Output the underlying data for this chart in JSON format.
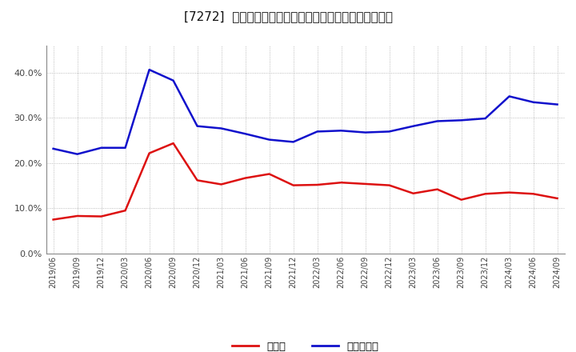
{
  "title": "[7272]  現頰金、有利子負債の総資産に対する比率の推移",
  "x_labels": [
    "2019/06",
    "2019/09",
    "2019/12",
    "2020/03",
    "2020/06",
    "2020/09",
    "2020/12",
    "2021/03",
    "2021/06",
    "2021/09",
    "2021/12",
    "2022/03",
    "2022/06",
    "2022/09",
    "2022/12",
    "2023/03",
    "2023/06",
    "2023/09",
    "2023/12",
    "2024/03",
    "2024/06",
    "2024/09"
  ],
  "cash": [
    0.075,
    0.083,
    0.082,
    0.095,
    0.222,
    0.244,
    0.162,
    0.153,
    0.167,
    0.176,
    0.151,
    0.152,
    0.157,
    0.154,
    0.151,
    0.133,
    0.142,
    0.119,
    0.132,
    0.135,
    0.132,
    0.122
  ],
  "debt": [
    0.232,
    0.22,
    0.234,
    0.234,
    0.407,
    0.383,
    0.282,
    0.277,
    0.265,
    0.252,
    0.247,
    0.27,
    0.272,
    0.268,
    0.27,
    0.282,
    0.293,
    0.295,
    0.299,
    0.348,
    0.335,
    0.33
  ],
  "cash_color": "#dd1111",
  "debt_color": "#1111cc",
  "bg_color": "#ffffff",
  "grid_color": "#aaaaaa",
  "title_color": "#111111",
  "ylim": [
    0.0,
    0.46
  ],
  "yticks": [
    0.0,
    0.1,
    0.2,
    0.3,
    0.4
  ],
  "legend_cash": "現頰金",
  "legend_debt": "有利子負債"
}
